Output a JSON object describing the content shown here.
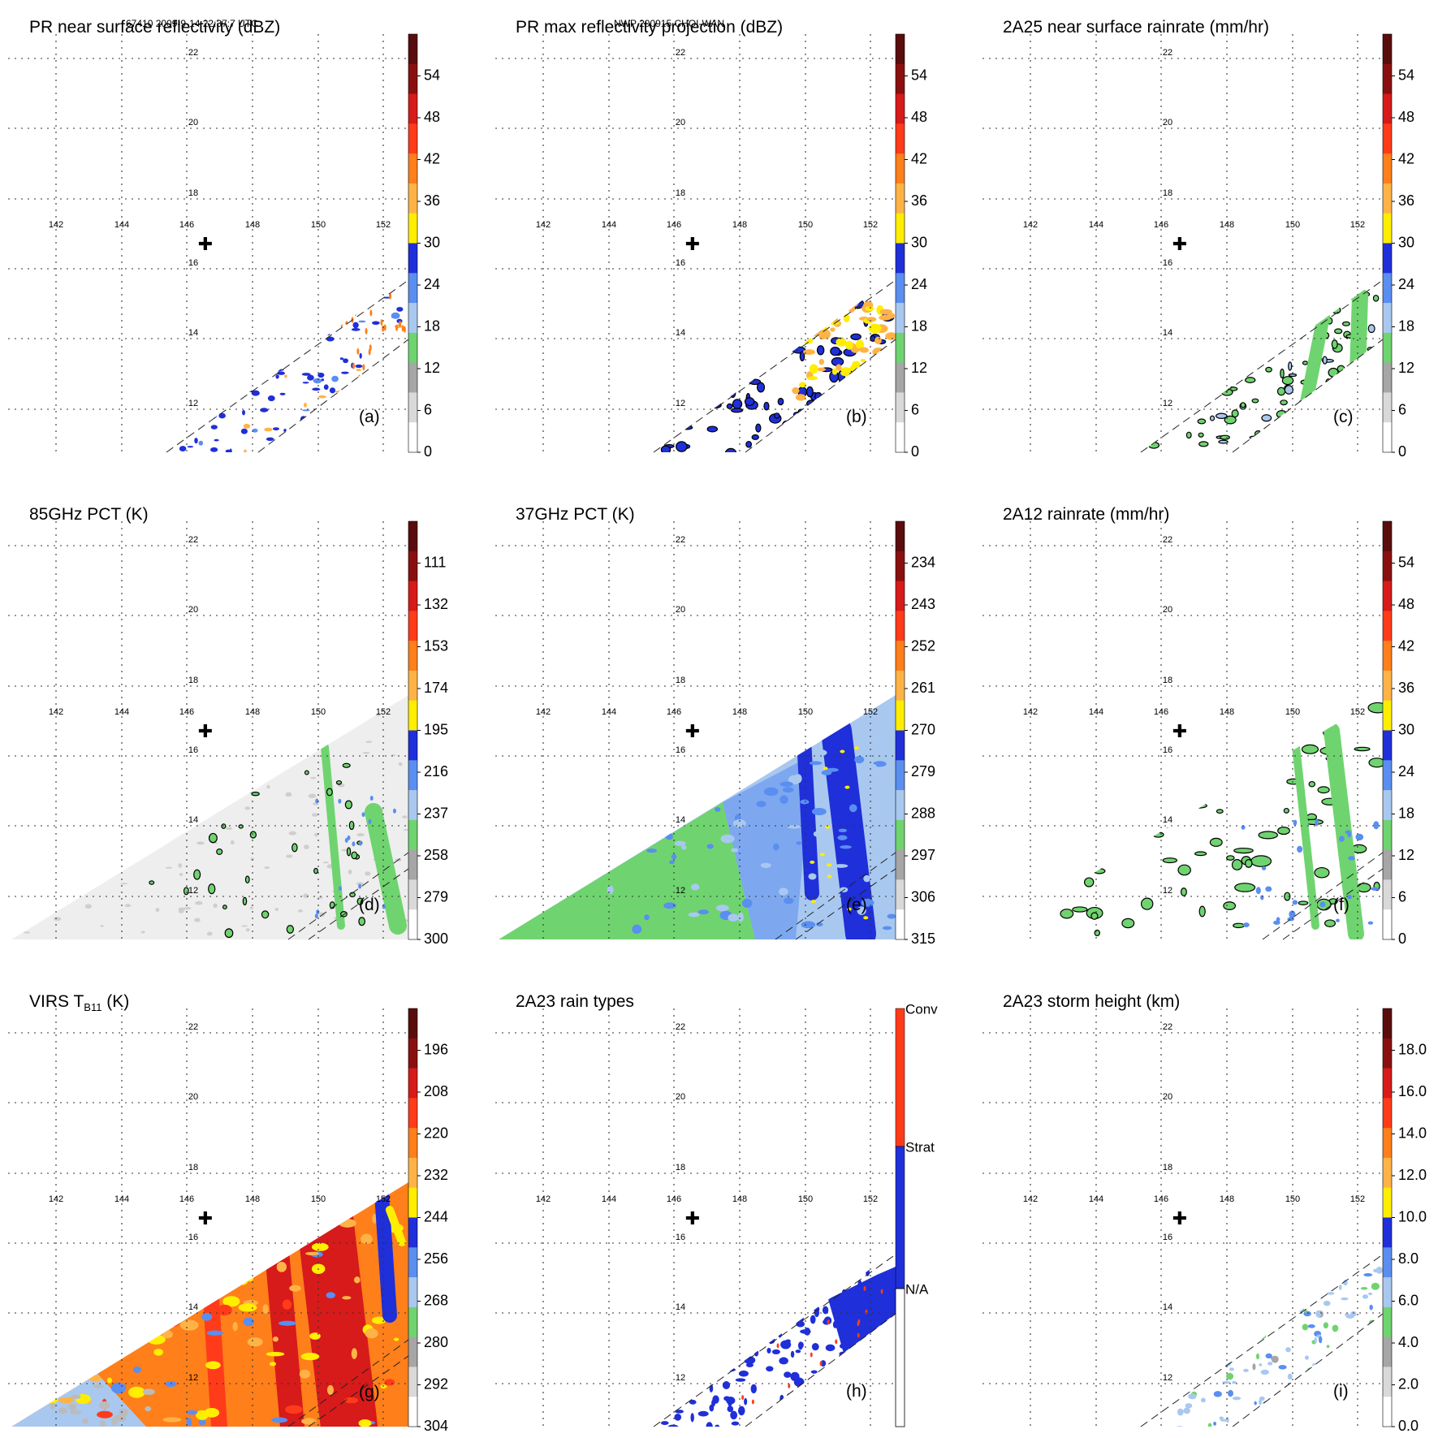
{
  "header": {
    "left": "67410 2009-9-14 22:37:7 UTC",
    "center": "NWP 200915 CHOI-WAN"
  },
  "map": {
    "lon_labels": [
      "142",
      "144",
      "146",
      "148",
      "150",
      "152"
    ],
    "lat_labels": [
      "22",
      "20",
      "18",
      "16",
      "14",
      "12"
    ],
    "storm_center_marker": "✚"
  },
  "colors": {
    "white": "#ffffff",
    "gray_light": "#d9d9d9",
    "gray": "#a6a6a6",
    "green": "#6fd46f",
    "lightblue": "#a9c8f0",
    "midblue": "#5a8ef0",
    "blue": "#1f2fd9",
    "yellow": "#ffee00",
    "orange_light": "#ffb347",
    "orange": "#ff7f1a",
    "red_orange": "#ff3b1a",
    "red": "#d71a1a",
    "dark_red": "#8a1010",
    "brown": "#5a0d0d"
  },
  "panels": [
    {
      "id": "a",
      "title": "PR near surface reflectivity (dBZ)",
      "label": "(a)",
      "swath": "narrow",
      "fill": "echo-blue",
      "colorbar": {
        "labels": [
          "54",
          "48",
          "42",
          "36",
          "30",
          "24",
          "18",
          "12",
          "6",
          "0"
        ]
      }
    },
    {
      "id": "b",
      "title": "PR max reflectivity projection (dBZ)",
      "label": "(b)",
      "swath": "narrow",
      "fill": "echo-orange",
      "colorbar": {
        "labels": [
          "54",
          "48",
          "42",
          "36",
          "30",
          "24",
          "18",
          "12",
          "6",
          "0"
        ]
      }
    },
    {
      "id": "c",
      "title": "2A25 near surface rainrate (mm/hr)",
      "label": "(c)",
      "swath": "narrow",
      "fill": "rain-green",
      "colorbar": {
        "labels": [
          "54",
          "48",
          "42",
          "36",
          "30",
          "24",
          "18",
          "12",
          "6",
          "0"
        ]
      }
    },
    {
      "id": "d",
      "title": "85GHz PCT (K)",
      "label": "(d)",
      "swath": "wide",
      "fill": "pct85",
      "colorbar": {
        "labels": [
          "111",
          "132",
          "153",
          "174",
          "195",
          "216",
          "237",
          "258",
          "279",
          "300"
        ]
      }
    },
    {
      "id": "e",
      "title": "37GHz PCT (K)",
      "label": "(e)",
      "swath": "wide",
      "fill": "pct37",
      "colorbar": {
        "labels": [
          "234",
          "243",
          "252",
          "261",
          "270",
          "279",
          "288",
          "297",
          "306",
          "315"
        ]
      }
    },
    {
      "id": "f",
      "title": "2A12 rainrate (mm/hr)",
      "label": "(f)",
      "swath": "wide",
      "fill": "rain-wide",
      "colorbar": {
        "labels": [
          "54",
          "48",
          "42",
          "36",
          "30",
          "24",
          "18",
          "12",
          "6",
          "0"
        ]
      }
    },
    {
      "id": "g",
      "title_main": "VIRS T",
      "title_sub": "B11",
      "title_unit": " (K)",
      "label": "(g)",
      "swath": "wide",
      "fill": "virs",
      "colorbar": {
        "labels": [
          "196",
          "208",
          "220",
          "232",
          "244",
          "256",
          "268",
          "280",
          "292",
          "304"
        ]
      }
    },
    {
      "id": "h",
      "title": "2A23 rain types",
      "label": "(h)",
      "swath": "narrow",
      "fill": "raintype",
      "colorbar": {
        "labels": [
          "Conv",
          "Strat",
          "N/A"
        ]
      }
    },
    {
      "id": "i",
      "title": "2A23 storm height (km)",
      "label": "(i)",
      "swath": "narrow",
      "fill": "height",
      "colorbar": {
        "labels": [
          "18.0",
          "16.0",
          "14.0",
          "12.0",
          "10.0",
          "8.0",
          "6.0",
          "4.0",
          "2.0",
          "0.0"
        ]
      }
    }
  ]
}
